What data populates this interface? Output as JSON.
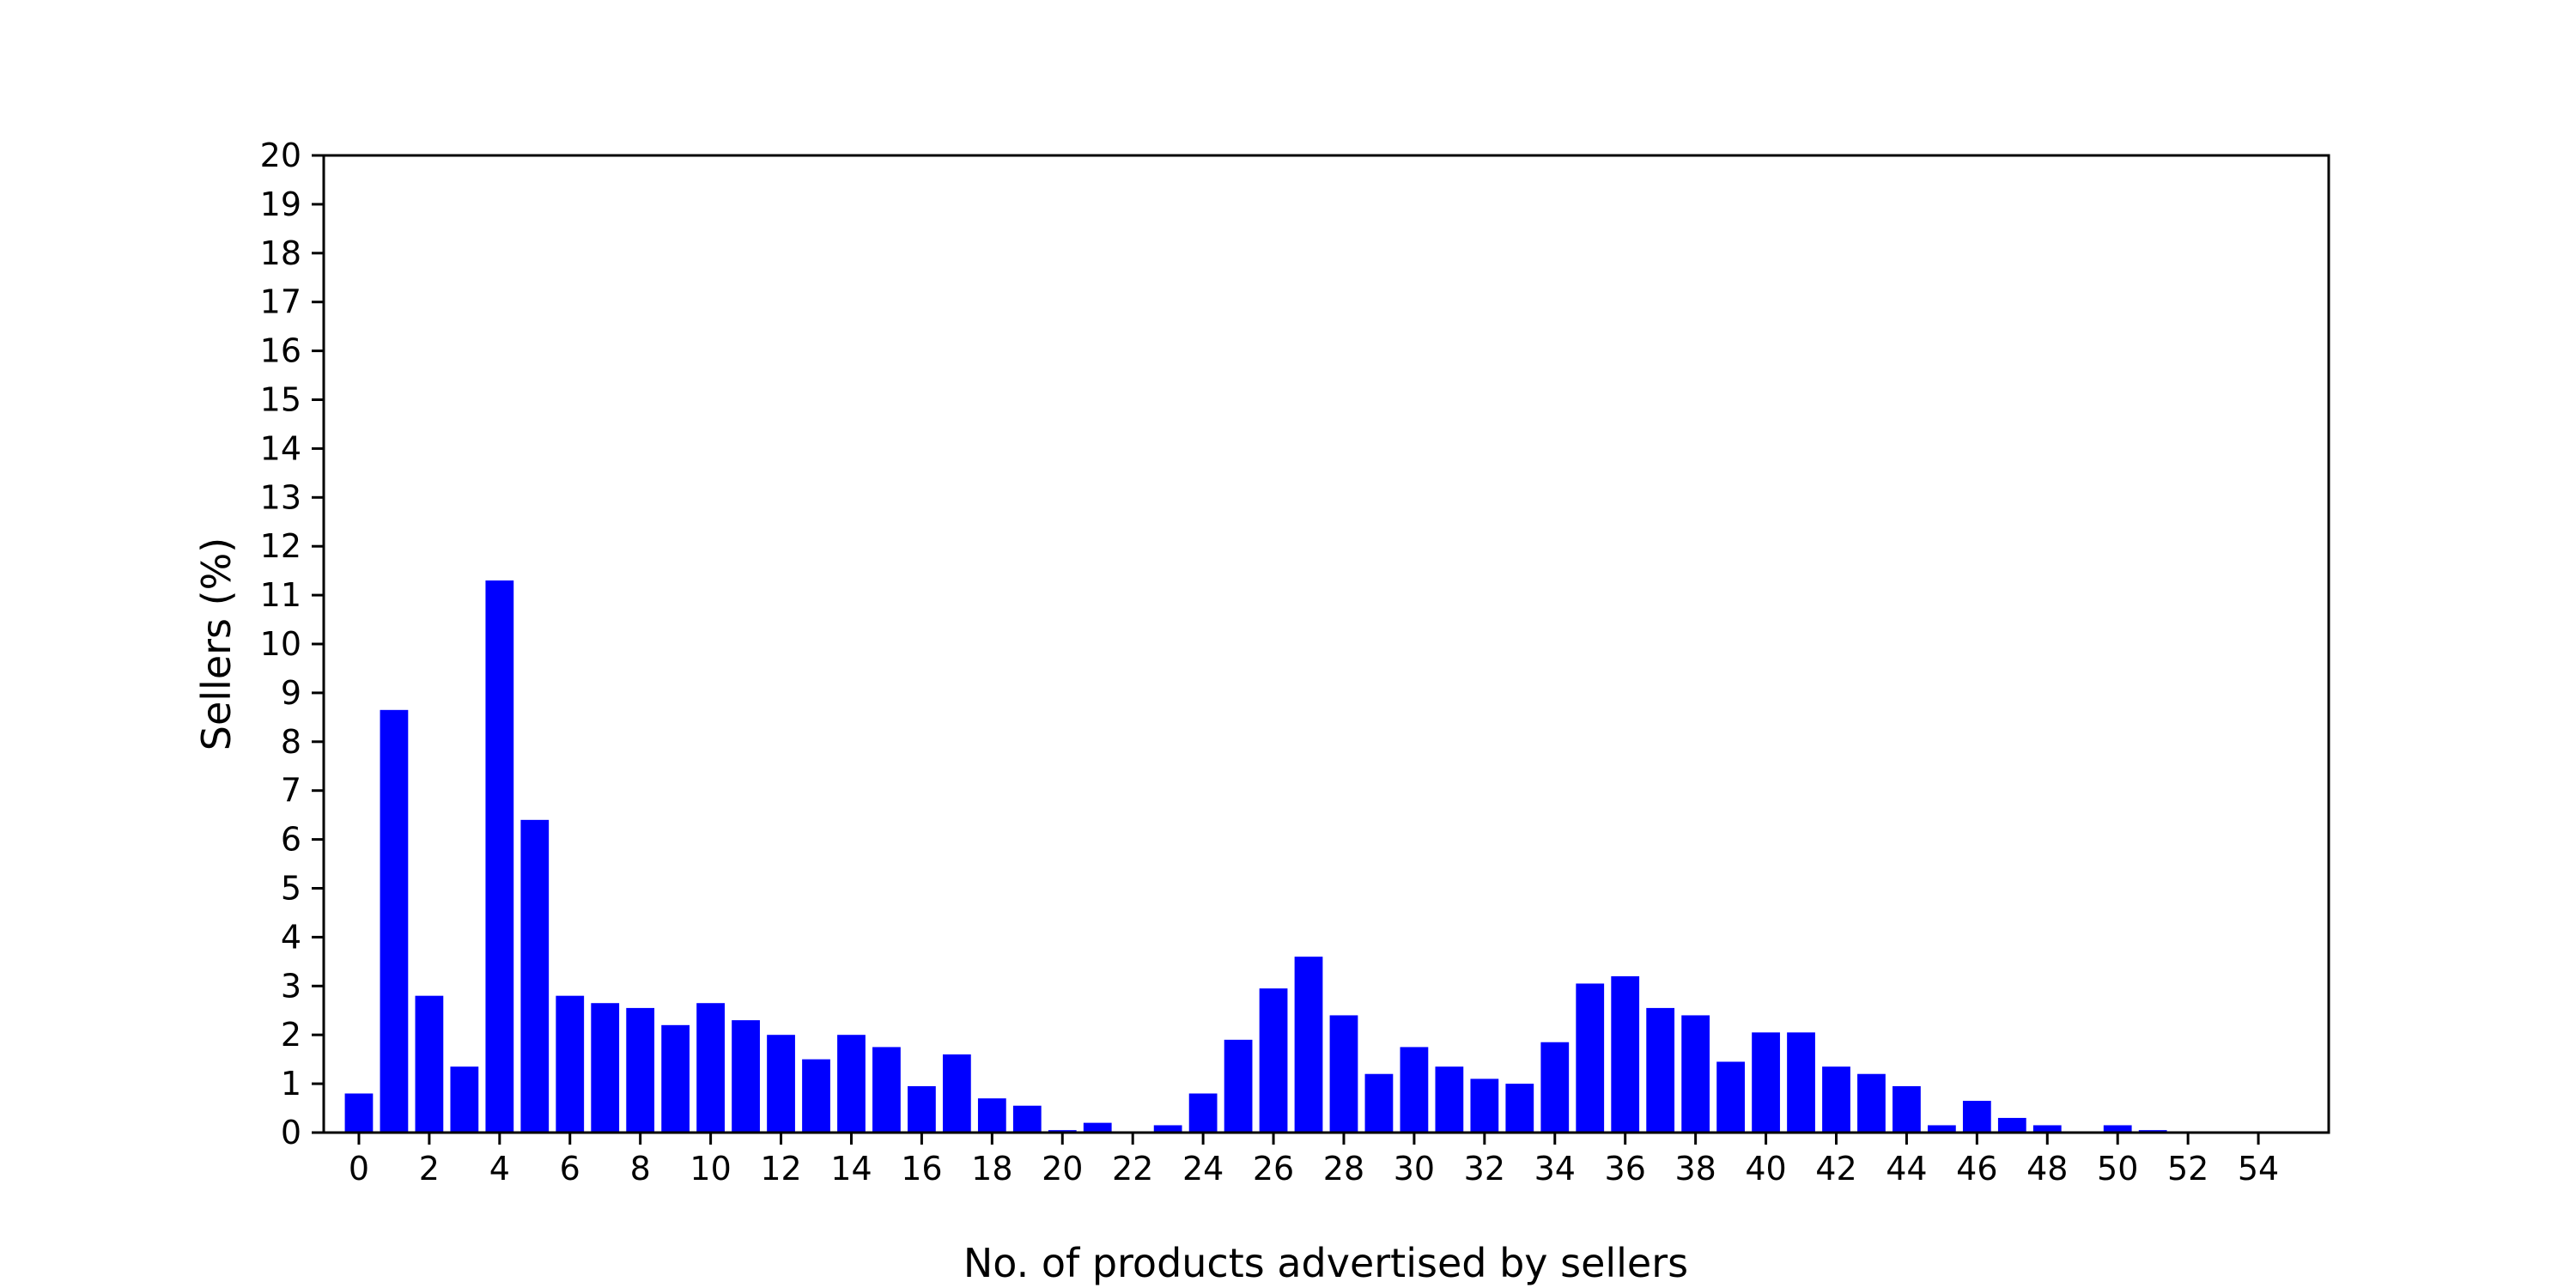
{
  "chart_data": {
    "type": "bar",
    "title": "",
    "xlabel": "No. of products advertised by sellers",
    "ylabel": "Sellers (%)",
    "x": [
      0,
      1,
      2,
      3,
      4,
      5,
      6,
      7,
      8,
      9,
      10,
      11,
      12,
      13,
      14,
      15,
      16,
      17,
      18,
      19,
      20,
      21,
      22,
      23,
      24,
      25,
      26,
      27,
      28,
      29,
      30,
      31,
      32,
      33,
      34,
      35,
      36,
      37,
      38,
      39,
      40,
      41,
      42,
      43,
      44,
      45,
      46,
      47,
      48,
      49,
      50,
      51,
      52,
      53,
      54
    ],
    "values": [
      0.8,
      8.65,
      2.8,
      1.35,
      11.3,
      6.4,
      2.8,
      2.65,
      2.55,
      2.2,
      2.65,
      2.3,
      2.0,
      1.5,
      2.0,
      1.75,
      0.95,
      1.6,
      0.7,
      0.55,
      0.05,
      0.2,
      0.0,
      0.15,
      0.8,
      1.9,
      2.95,
      3.6,
      2.4,
      1.2,
      1.75,
      1.35,
      1.1,
      1.0,
      1.85,
      3.05,
      3.2,
      2.55,
      2.4,
      1.45,
      2.05,
      2.05,
      1.35,
      1.2,
      0.95,
      0.15,
      0.65,
      0.3,
      0.15,
      0.0,
      0.15,
      0.05,
      0.0,
      0.0,
      0.0
    ],
    "xticks": [
      0,
      2,
      4,
      6,
      8,
      10,
      12,
      14,
      16,
      18,
      20,
      22,
      24,
      26,
      28,
      30,
      32,
      34,
      36,
      38,
      40,
      42,
      44,
      46,
      48,
      50,
      52,
      54
    ],
    "yticks": [
      0,
      1,
      2,
      3,
      4,
      5,
      6,
      7,
      8,
      9,
      10,
      11,
      12,
      13,
      14,
      15,
      16,
      17,
      18,
      19,
      20
    ],
    "xlim": [
      -1,
      56
    ],
    "ylim": [
      0,
      20
    ],
    "bar_color": "#0000ff",
    "grid": false,
    "legend": "none"
  }
}
